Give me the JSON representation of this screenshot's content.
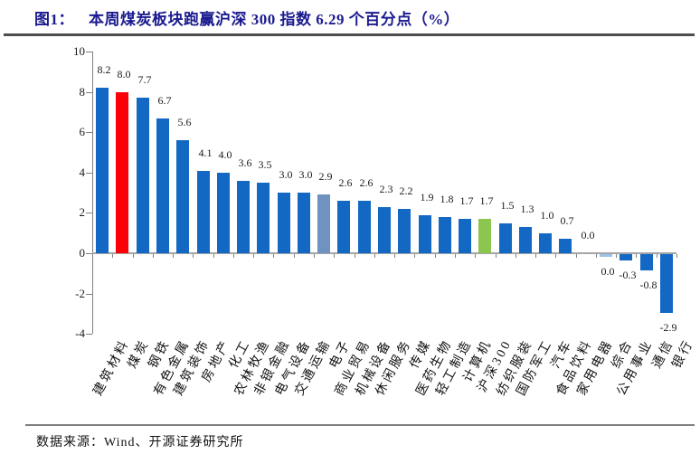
{
  "figure": {
    "label": "图1：",
    "title": "本周煤炭板块跑赢沪深 300 指数 6.29 个百分点（%）"
  },
  "source": {
    "text": "数据来源：Wind、开源证券研究所"
  },
  "colors": {
    "title_text": "#1B1B8F",
    "bar_default": "#1268C3",
    "bar_coal_red": "#FB0006",
    "bar_electronics_steel": "#7092C0",
    "bar_hs300_green": "#8CC550",
    "bar_zero_sliver": "#9DC3E6",
    "axis_gray": "#808080",
    "zero_line_gray": "#A6A6A6"
  },
  "chart_data": {
    "type": "bar",
    "title": "本周煤炭板块跑赢沪深 300 指数 6.29 个百分点（%）",
    "unit": "percentage points (%)",
    "categories": [
      "建筑材料",
      "煤炭",
      "钢铁",
      "有色金属",
      "建筑装饰",
      "房地产",
      "化工",
      "农林牧渔",
      "非银金融",
      "电气设备",
      "交通运输",
      "电子",
      "商业贸易",
      "机械设备",
      "休闲服务",
      "传媒",
      "医药生物",
      "轻工制造",
      "计算机",
      "沪深300",
      "纺织服装",
      "国防军工",
      "汽车",
      "食品饮料",
      "家用电器",
      "综合",
      "公用事业",
      "通信",
      "银行"
    ],
    "values": [
      8.2,
      8.0,
      7.7,
      6.7,
      5.6,
      4.1,
      4.0,
      3.6,
      3.5,
      3.0,
      3.0,
      2.9,
      2.6,
      2.6,
      2.3,
      2.2,
      1.9,
      1.8,
      1.7,
      1.7,
      1.5,
      1.3,
      1.0,
      0.7,
      0.0,
      0.0,
      -0.3,
      -0.8,
      -2.9
    ],
    "bar_colors": [
      "#1268C3",
      "#FB0006",
      "#1268C3",
      "#1268C3",
      "#1268C3",
      "#1268C3",
      "#1268C3",
      "#1268C3",
      "#1268C3",
      "#1268C3",
      "#1268C3",
      "#7092C0",
      "#1268C3",
      "#1268C3",
      "#1268C3",
      "#1268C3",
      "#1268C3",
      "#1268C3",
      "#1268C3",
      "#8CC550",
      "#1268C3",
      "#1268C3",
      "#1268C3",
      "#1268C3",
      "#1268C3",
      "#9DC3E6",
      "#1268C3",
      "#1268C3",
      "#1268C3"
    ],
    "value_label_format": "one decimal, outside end",
    "ylim": [
      -4,
      10
    ],
    "yticks": [
      10,
      8,
      6,
      4,
      2,
      0,
      -2,
      -4
    ],
    "grid": false,
    "legend": false,
    "xlabel": "",
    "ylabel": ""
  }
}
